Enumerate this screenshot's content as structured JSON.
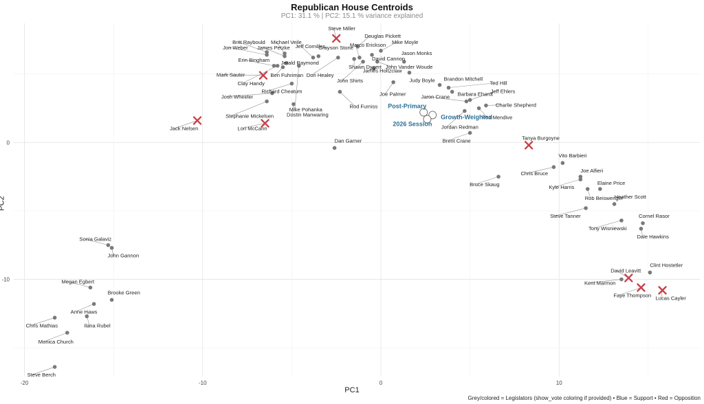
{
  "title": "Republican House Centroids",
  "subtitle": "PC1: 31.1 % | PC2: 15.1 % variance explained",
  "caption": "Grey/colored = Legislators (show_vote coloring if provided) • Blue = Support • Red = Opposition",
  "chart_data": {
    "type": "scatter",
    "xlabel": "PC1",
    "ylabel": "PC2",
    "xlim": [
      -20.6,
      17.9
    ],
    "ylim": [
      -17.1,
      8.7
    ],
    "x_ticks": [
      -20,
      -10,
      0,
      10
    ],
    "y_ticks": [
      -10,
      0
    ],
    "grid": true,
    "colors": {
      "legislator": "#7a7a7a",
      "opposition": "#c8414b",
      "support": "#2a6f97"
    },
    "legislators": [
      {
        "name": "Steve Miller",
        "x": -2.5,
        "y": 7.6,
        "vote": "opposition"
      },
      {
        "name": "Douglas Pickett",
        "x": -1.3,
        "y": 7.0
      },
      {
        "name": "Britt Raybould",
        "x": -6.4,
        "y": 6.6
      },
      {
        "name": "Michael Veile",
        "x": -5.4,
        "y": 6.5
      },
      {
        "name": "Jeff Cornilles",
        "x": -3.8,
        "y": 6.2
      },
      {
        "name": "Marco Erickson",
        "x": -1.2,
        "y": 6.2
      },
      {
        "name": "Mike Moyle",
        "x": 0.0,
        "y": 6.7
      },
      {
        "name": "James Petzke",
        "x": -5.4,
        "y": 6.3
      },
      {
        "name": "Grayson Stone",
        "x": -3.5,
        "y": 6.3
      },
      {
        "name": "Jon Weber",
        "x": -6.4,
        "y": 6.4
      },
      {
        "name": "David Cannon",
        "x": -0.5,
        "y": 6.4
      },
      {
        "name": "Jason Monks",
        "x": 1.3,
        "y": 5.9
      },
      {
        "name": "Shawn Dygert",
        "x": -1.5,
        "y": 6.1
      },
      {
        "name": "Erin Bingham",
        "x": -6.0,
        "y": 5.6
      },
      {
        "name": "Jerald Raymond",
        "x": -5.3,
        "y": 5.8
      },
      {
        "name": "John Vander Woude",
        "x": -0.2,
        "y": 5.9
      },
      {
        "name": "James Holtzclaw",
        "x": -0.4,
        "y": 5.4
      },
      {
        "name": "Dori Healey",
        "x": -2.4,
        "y": 6.2
      },
      {
        "name": "Ben Fuhriman",
        "x": -5.5,
        "y": 5.5
      },
      {
        "name": "Mark Sauter",
        "x": -6.6,
        "y": 4.9,
        "vote": "opposition"
      },
      {
        "name": "John Shirts",
        "x": -1.0,
        "y": 5.9
      },
      {
        "name": "Judy Boyle",
        "x": 1.6,
        "y": 5.1
      },
      {
        "name": "Brandon Mitchell",
        "x": 3.3,
        "y": 4.2
      },
      {
        "name": "Ted Hill",
        "x": 3.8,
        "y": 4.0
      },
      {
        "name": "Clay Handy",
        "x": -5.8,
        "y": 5.6
      },
      {
        "name": "Richard Cheatum",
        "x": -5.0,
        "y": 4.3
      },
      {
        "name": "Joe Palmer",
        "x": 0.7,
        "y": 4.4
      },
      {
        "name": "Barbara Ehardt",
        "x": 4.0,
        "y": 3.7
      },
      {
        "name": "Jeff Ehlers",
        "x": 5.0,
        "y": 3.1
      },
      {
        "name": "Josh Wheeler",
        "x": -6.1,
        "y": 3.6
      },
      {
        "name": "Mike Pohanka",
        "x": -4.6,
        "y": 5.6
      },
      {
        "name": "Rod Furniss",
        "x": -2.3,
        "y": 3.7
      },
      {
        "name": "Jaron Crane",
        "x": 4.8,
        "y": 3.0
      },
      {
        "name": "Charlie Shepherd",
        "x": 5.9,
        "y": 2.7
      },
      {
        "name": "Stephanie Mickelsen",
        "x": -6.4,
        "y": 3.0
      },
      {
        "name": "Dustin Manwaring",
        "x": -4.9,
        "y": 2.8
      },
      {
        "name": "Ron Mendive",
        "x": 5.5,
        "y": 2.5
      },
      {
        "name": "Jack Nelsen",
        "x": -10.3,
        "y": 1.6,
        "vote": "opposition"
      },
      {
        "name": "Lori McCann",
        "x": -6.5,
        "y": 1.4,
        "vote": "opposition"
      },
      {
        "name": "Jordan Redman",
        "x": 4.7,
        "y": 2.3
      },
      {
        "name": "Brent Crane",
        "x": 5.0,
        "y": 0.7
      },
      {
        "name": "Tanya Burgoyne",
        "x": 8.3,
        "y": -0.2,
        "vote": "opposition"
      },
      {
        "name": "Dan Garner",
        "x": -2.6,
        "y": -0.4
      },
      {
        "name": "Vito Barbieri",
        "x": 10.2,
        "y": -1.5
      },
      {
        "name": "Chris Bruce",
        "x": 9.7,
        "y": -1.8
      },
      {
        "name": "Joe Alfieri",
        "x": 11.2,
        "y": -2.5
      },
      {
        "name": "Kyle Harris",
        "x": 11.2,
        "y": -2.7
      },
      {
        "name": "Bruce Skaug",
        "x": 6.6,
        "y": -2.5
      },
      {
        "name": "Elaine Price",
        "x": 12.3,
        "y": -3.4
      },
      {
        "name": "Rob Beiswenger",
        "x": 11.6,
        "y": -3.4
      },
      {
        "name": "Heather Scott",
        "x": 13.1,
        "y": -4.5
      },
      {
        "name": "Steve Tanner",
        "x": 11.5,
        "y": -4.8
      },
      {
        "name": "Cornel Rasor",
        "x": 14.7,
        "y": -5.9
      },
      {
        "name": "Tony Wisniewski",
        "x": 13.5,
        "y": -5.7
      },
      {
        "name": "Dale Hawkins",
        "x": 14.6,
        "y": -6.3
      },
      {
        "name": "Sonia Galaviz",
        "x": -15.3,
        "y": -7.5
      },
      {
        "name": "John Gannon",
        "x": -15.1,
        "y": -7.7
      },
      {
        "name": "David Leavitt",
        "x": 13.9,
        "y": -9.9,
        "vote": "opposition"
      },
      {
        "name": "Clint Hostetler",
        "x": 15.1,
        "y": -9.5
      },
      {
        "name": "Kent Marmon",
        "x": 13.5,
        "y": -10.0
      },
      {
        "name": "Faye Thompson",
        "x": 14.6,
        "y": -10.6,
        "vote": "opposition"
      },
      {
        "name": "Lucas Cayler",
        "x": 15.8,
        "y": -10.8,
        "vote": "opposition"
      },
      {
        "name": "Megan Egbert",
        "x": -16.3,
        "y": -10.6
      },
      {
        "name": "Brooke Green",
        "x": -15.1,
        "y": -11.5
      },
      {
        "name": "Anne Haws",
        "x": -16.1,
        "y": -11.8
      },
      {
        "name": "Ilana Rubel",
        "x": -16.5,
        "y": -12.7
      },
      {
        "name": "Chris Mathias",
        "x": -18.3,
        "y": -12.8
      },
      {
        "name": "Monica Church",
        "x": -17.6,
        "y": -13.9
      },
      {
        "name": "Steve Berch",
        "x": -18.3,
        "y": -16.4
      }
    ],
    "session_centroids": [
      {
        "name": "Post-Primary",
        "x": 2.4,
        "y": 2.2
      },
      {
        "name": "Growth-Weighted",
        "x": 2.9,
        "y": 2.0
      },
      {
        "name": "2026 Session",
        "x": 2.6,
        "y": 1.7
      }
    ]
  }
}
